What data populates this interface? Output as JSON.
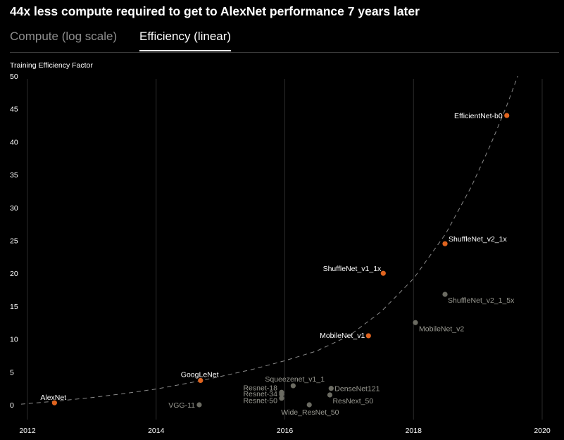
{
  "headline": "44x less compute required to get to AlexNet performance 7 years later",
  "tabs": [
    {
      "label": "Compute (log scale)",
      "active": false
    },
    {
      "label": "Efficiency (linear)",
      "active": true
    }
  ],
  "colors": {
    "background": "#000000",
    "highlight": "#e0641f",
    "muted_point": "#6b6b62",
    "muted_text": "#9a9a92",
    "grid": "#2a2a2a",
    "trend": "#8a8a8a"
  },
  "chart_data": {
    "type": "scatter",
    "title": "44x less compute required to get to AlexNet performance 7 years later",
    "ylabel": "Training Efficiency Factor",
    "xlabel": "",
    "xlim": [
      2012,
      2020
    ],
    "ylim": [
      0,
      50
    ],
    "xticks": [
      "2012",
      "2014",
      "2016",
      "2018",
      "2020"
    ],
    "yticks": [
      "0",
      "5",
      "10",
      "15",
      "20",
      "25",
      "30",
      "35",
      "40",
      "45",
      "50"
    ],
    "grid": "vertical",
    "series": [
      {
        "highlight": true,
        "points": [
          {
            "label": "AlexNet",
            "x": 2012.42,
            "y": 0.3
          },
          {
            "label": "GoogLeNet",
            "x": 2014.69,
            "y": 3.7
          },
          {
            "label": "MobileNet_v1",
            "x": 2017.3,
            "y": 10.5
          },
          {
            "label": "ShuffleNet_v1_1x",
            "x": 2017.53,
            "y": 20.0
          },
          {
            "label": "ShuffleNet_v2_1x",
            "x": 2018.49,
            "y": 24.5
          },
          {
            "label": "EfficientNet-b0",
            "x": 2019.45,
            "y": 44.0
          }
        ]
      },
      {
        "highlight": false,
        "points": [
          {
            "label": "VGG-11",
            "x": 2014.67,
            "y": 0.0
          },
          {
            "label": "Resnet-18",
            "x": 2015.95,
            "y": 1.9
          },
          {
            "label": "Resnet-34",
            "x": 2015.95,
            "y": 1.6
          },
          {
            "label": "Resnet-50",
            "x": 2015.95,
            "y": 1.0
          },
          {
            "label": "Squeezenet_v1_1",
            "x": 2016.13,
            "y": 2.9
          },
          {
            "label": "Wide_ResNet_50",
            "x": 2016.38,
            "y": 0.0
          },
          {
            "label": "DenseNet121",
            "x": 2016.72,
            "y": 2.5
          },
          {
            "label": "ResNext_50",
            "x": 2016.7,
            "y": 1.5
          },
          {
            "label": "MobileNet_v2",
            "x": 2018.03,
            "y": 12.5
          },
          {
            "label": "ShuffleNet_v2_1_5x",
            "x": 2018.49,
            "y": 16.8
          }
        ]
      }
    ],
    "trend": {
      "style": "dashed",
      "points": [
        [
          2011.9,
          0.1
        ],
        [
          2012.5,
          0.6
        ],
        [
          2013,
          1.1
        ],
        [
          2013.5,
          1.7
        ],
        [
          2014,
          2.4
        ],
        [
          2014.5,
          3.3
        ],
        [
          2015,
          4.3
        ],
        [
          2015.5,
          5.4
        ],
        [
          2016,
          6.7
        ],
        [
          2016.5,
          8.2
        ],
        [
          2017,
          10.5
        ],
        [
          2017.5,
          14.2
        ],
        [
          2018,
          19.2
        ],
        [
          2018.5,
          26.0
        ],
        [
          2018.9,
          33.2
        ],
        [
          2019.2,
          39.6
        ],
        [
          2019.45,
          45.5
        ],
        [
          2019.62,
          50.0
        ]
      ]
    }
  }
}
